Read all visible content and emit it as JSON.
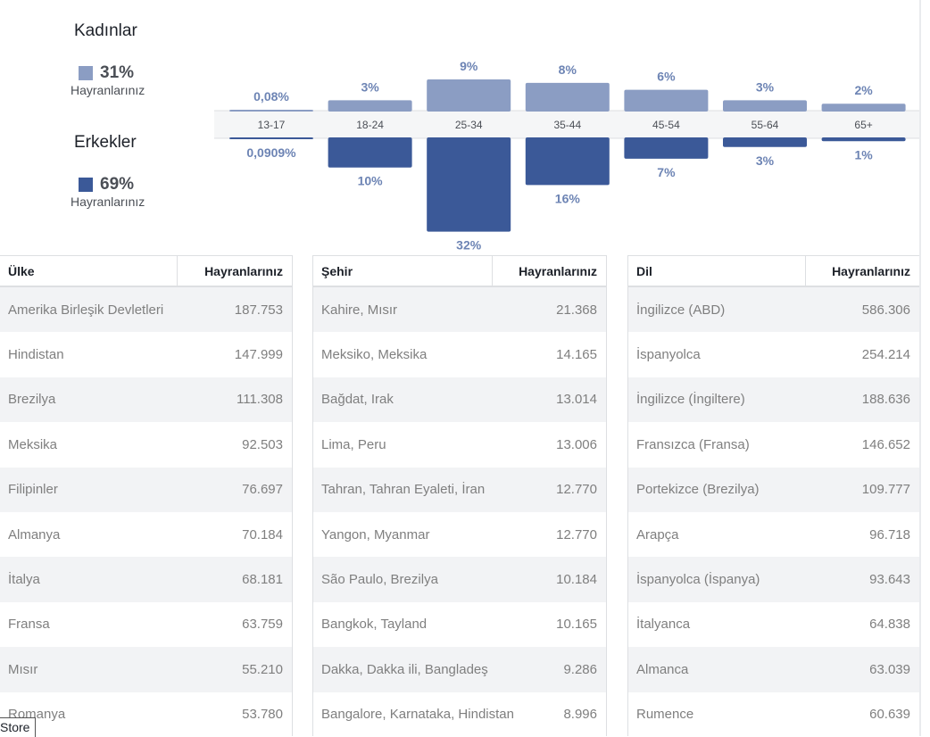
{
  "legend": {
    "women": {
      "title": "Kadınlar",
      "pct": "31%",
      "sub": "Hayranlarınız",
      "color": "#8b9dc3"
    },
    "men": {
      "title": "Erkekler",
      "pct": "69%",
      "sub": "Hayranlarınız",
      "color": "#3b5998"
    }
  },
  "chart_data": {
    "type": "bar",
    "categories": [
      "13-17",
      "18-24",
      "25-34",
      "35-44",
      "45-54",
      "55-64",
      "65+"
    ],
    "series": [
      {
        "name": "Kadınlar",
        "values": [
          0.08,
          3,
          9,
          8,
          6,
          3,
          2
        ],
        "labels": [
          "0,08%",
          "3%",
          "9%",
          "8%",
          "6%",
          "3%",
          "2%"
        ],
        "color": "#8b9dc3"
      },
      {
        "name": "Erkekler",
        "values": [
          0.0909,
          10,
          32,
          16,
          7,
          3,
          1
        ],
        "labels": [
          "0,0909%",
          "10%",
          "32%",
          "16%",
          "7%",
          "3%",
          "1%"
        ],
        "color": "#3b5998"
      }
    ]
  },
  "tables": {
    "country": {
      "header": {
        "name": "Ülke",
        "value": "Hayranlarınız"
      },
      "rows": [
        {
          "name": "Amerika Birleşik Devletleri",
          "value": "187.753"
        },
        {
          "name": "Hindistan",
          "value": "147.999"
        },
        {
          "name": "Brezilya",
          "value": "111.308"
        },
        {
          "name": "Meksika",
          "value": "92.503"
        },
        {
          "name": "Filipinler",
          "value": "76.697"
        },
        {
          "name": "Almanya",
          "value": "70.184"
        },
        {
          "name": "İtalya",
          "value": "68.181"
        },
        {
          "name": "Fransa",
          "value": "63.759"
        },
        {
          "name": "Mısır",
          "value": "55.210"
        },
        {
          "name": "Romanya",
          "value": "53.780"
        }
      ]
    },
    "city": {
      "header": {
        "name": "Şehir",
        "value": "Hayranlarınız"
      },
      "rows": [
        {
          "name": "Kahire, Mısır",
          "value": "21.368"
        },
        {
          "name": "Meksiko, Meksika",
          "value": "14.165"
        },
        {
          "name": "Bağdat, Irak",
          "value": "13.014"
        },
        {
          "name": "Lima, Peru",
          "value": "13.006"
        },
        {
          "name": "Tahran, Tahran Eyaleti, İran",
          "value": "12.770"
        },
        {
          "name": "Yangon, Myanmar",
          "value": "12.770"
        },
        {
          "name": "São Paulo, Brezilya",
          "value": "10.184"
        },
        {
          "name": "Bangkok, Tayland",
          "value": "10.165"
        },
        {
          "name": "Dakka, Dakka ili, Bangladeş",
          "value": "9.286"
        },
        {
          "name": "Bangalore, Karnataka, Hindistan",
          "value": "8.996"
        }
      ]
    },
    "language": {
      "header": {
        "name": "Dil",
        "value": "Hayranlarınız"
      },
      "rows": [
        {
          "name": "İngilizce (ABD)",
          "value": "586.306"
        },
        {
          "name": "İspanyolca",
          "value": "254.214"
        },
        {
          "name": "İngilizce (İngiltere)",
          "value": "188.636"
        },
        {
          "name": "Fransızca (Fransa)",
          "value": "146.652"
        },
        {
          "name": "Portekizce (Brezilya)",
          "value": "109.777"
        },
        {
          "name": "Arapça",
          "value": "96.718"
        },
        {
          "name": "İspanyolca (İspanya)",
          "value": "93.643"
        },
        {
          "name": "İtalyanca",
          "value": "64.838"
        },
        {
          "name": "Almanca",
          "value": "63.039"
        },
        {
          "name": "Rumence",
          "value": "60.639"
        }
      ]
    }
  },
  "store_tab": "Store"
}
